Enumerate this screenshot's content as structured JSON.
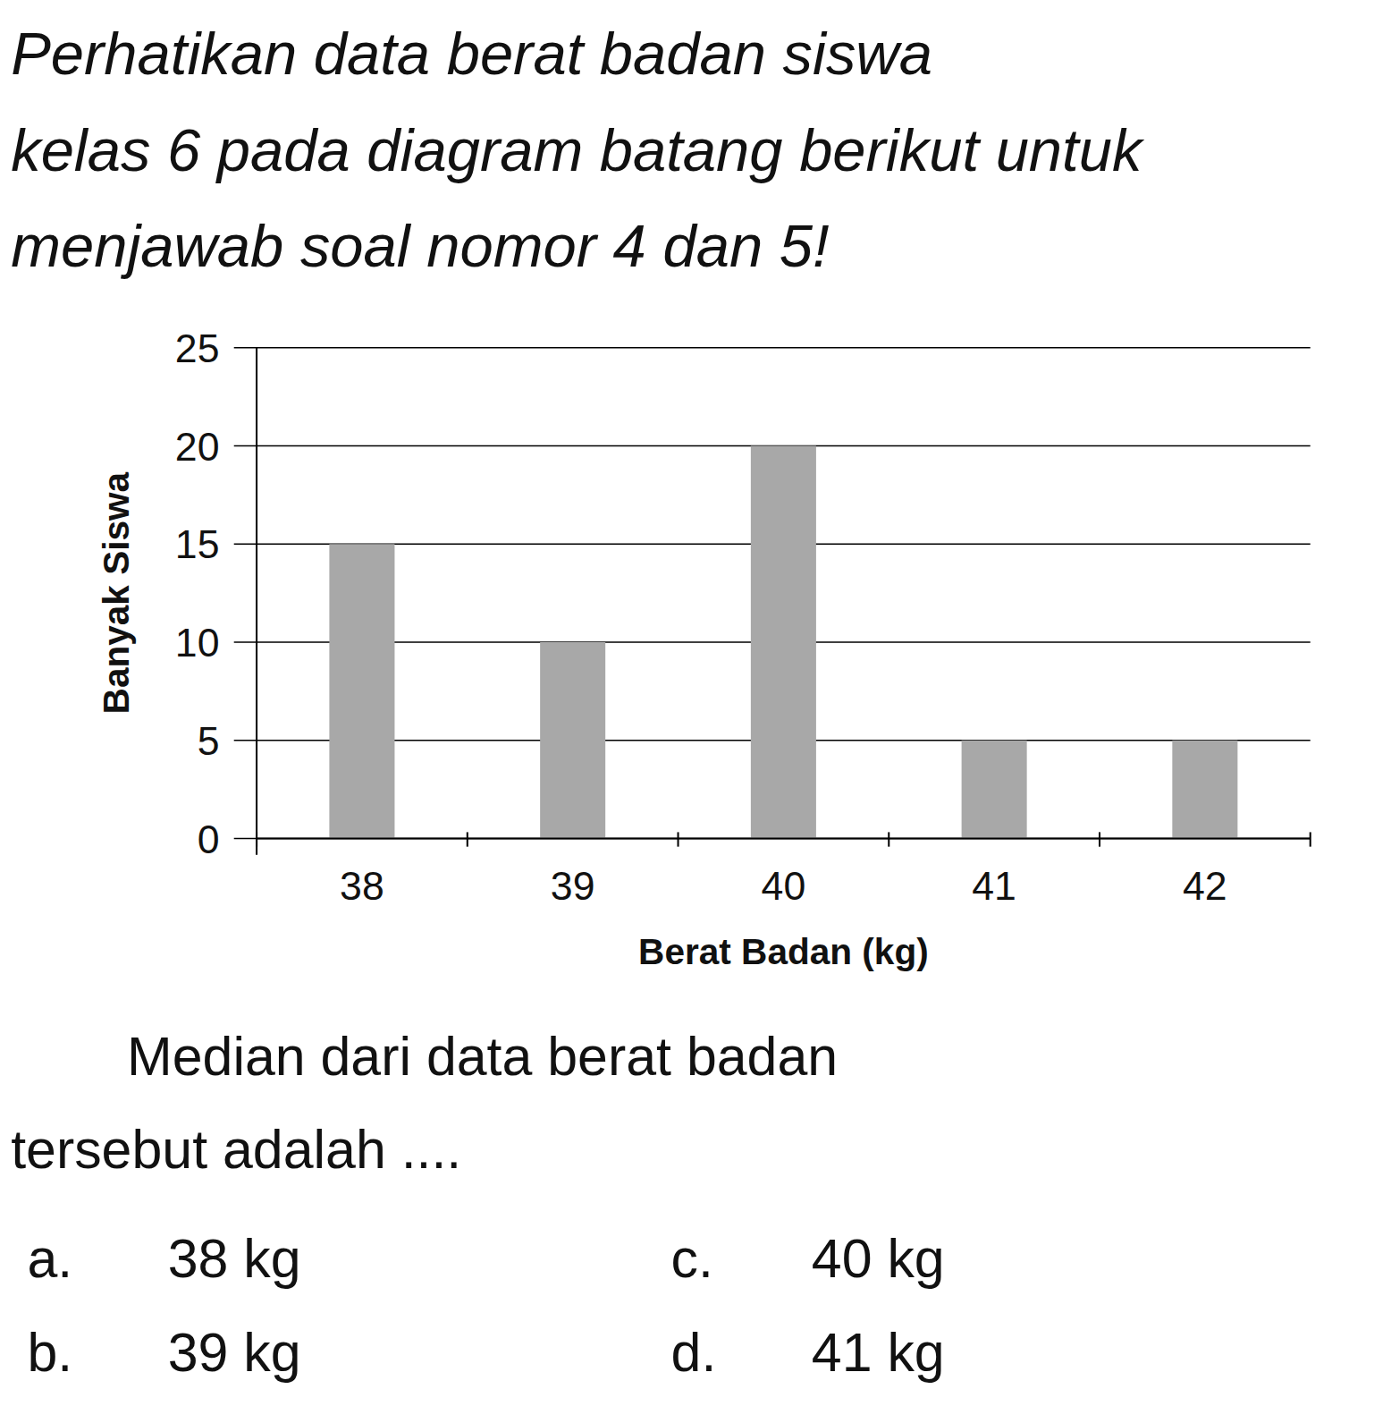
{
  "chart_data": {
    "type": "bar",
    "categories": [
      "38",
      "39",
      "40",
      "41",
      "42"
    ],
    "values": [
      15,
      10,
      20,
      5,
      5
    ],
    "color": "#a8a8a8",
    "ylim": [
      0,
      25
    ],
    "yticks": [
      0,
      5,
      10,
      15,
      20,
      25
    ],
    "grid": true,
    "x_label": "Berat Badan (kg)",
    "y_label": "Banyak Siswa"
  },
  "document": {
    "intro": [
      "Perhatikan data berat badan siswa",
      "kelas 6 pada diagram batang berikut untuk",
      "menjawab soal nomor 4 dan 5!"
    ],
    "question": [
      "Median dari data berat badan",
      "tersebut adalah ...."
    ],
    "options": [
      {
        "letter": "a.",
        "text": "38 kg"
      },
      {
        "letter": "b.",
        "text": "39 kg"
      },
      {
        "letter": "c.",
        "text": "40 kg"
      },
      {
        "letter": "d.",
        "text": "41 kg"
      }
    ]
  }
}
